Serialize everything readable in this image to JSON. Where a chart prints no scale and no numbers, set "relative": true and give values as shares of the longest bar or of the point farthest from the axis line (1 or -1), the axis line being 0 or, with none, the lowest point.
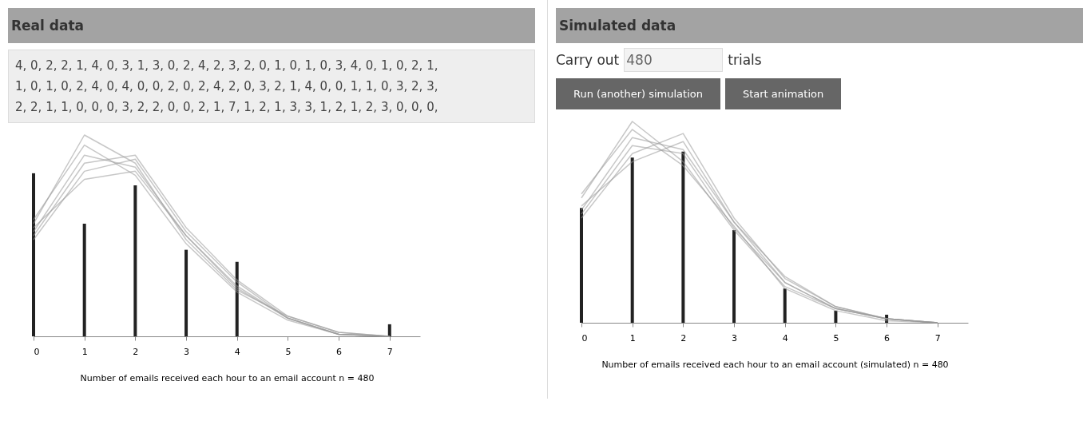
{
  "chart_data": [
    {
      "type": "bar",
      "title": "Real data",
      "relative": true,
      "xlabel": "Number of emails received each hour to an email account   n = 480",
      "xlim": [
        0,
        7.6
      ],
      "xticks": [
        0,
        1,
        2,
        3,
        4,
        5,
        6,
        7
      ],
      "x": [
        0,
        1,
        2,
        3,
        4,
        5,
        6,
        7
      ],
      "annotations": [
        "4, 0, 2, 2, 1, 4, 0, 3, 1, 3, 0, 2, 4, 2, 3, 2, 0, 1, 0, 1, 0, 3, 4, 0, 1, 0, 2, 1,",
        "1, 0, 1, 0, 2, 4, 0, 4, 0, 0, 2, 0, 2, 4, 2, 0, 3, 2, 1, 4, 0, 0, 1, 1, 0, 3, 2, 3,",
        "2, 2, 1, 1, 0, 0, 0, 3, 2, 2, 0, 0, 2, 1, 7, 1, 2, 1, 3, 3, 1, 2, 1, 2, 3, 0, 0, 0,"
      ],
      "series": [
        {
          "color": "#222222",
          "values": [
            0.81,
            0.56,
            0.75,
            0.43,
            0.37,
            0,
            0,
            0.06
          ]
        },
        {
          "type": "line",
          "color": "#999999",
          "values": [
            0.52,
            0.9,
            0.84,
            0.5,
            0.25,
            0.09,
            0.01,
            0
          ]
        },
        {
          "type": "line",
          "color": "#999999",
          "values": [
            0.56,
            1.0,
            0.86,
            0.48,
            0.23,
            0.1,
            0.02,
            0
          ]
        },
        {
          "type": "line",
          "color": "#999999",
          "values": [
            0.48,
            0.82,
            0.88,
            0.52,
            0.27,
            0.09,
            0.01,
            0
          ]
        },
        {
          "type": "line",
          "color": "#999999",
          "values": [
            0.58,
            0.95,
            0.8,
            0.46,
            0.22,
            0.08,
            0.01,
            0
          ]
        },
        {
          "type": "line",
          "color": "#999999",
          "values": [
            0.5,
            0.86,
            0.9,
            0.54,
            0.28,
            0.1,
            0.02,
            0
          ]
        },
        {
          "type": "line",
          "color": "#999999",
          "values": [
            0.54,
            0.78,
            0.82,
            0.5,
            0.24,
            0.09,
            0.01,
            0
          ]
        }
      ]
    },
    {
      "type": "bar",
      "title": "Simulated data",
      "relative": true,
      "xlabel": "Number of emails received each hour to an email account (simulated)   n = 480",
      "xlim": [
        0,
        7.6
      ],
      "xticks": [
        0,
        1,
        2,
        3,
        4,
        5,
        6,
        7
      ],
      "x": [
        0,
        1,
        2,
        3,
        4,
        5,
        6,
        7
      ],
      "annotations": [
        "Carry out",
        "480",
        "trials",
        "Run (another) simulation",
        "Start animation"
      ],
      "series": [
        {
          "color": "#222222",
          "values": [
            0.57,
            0.82,
            0.85,
            0.46,
            0.17,
            0.06,
            0.04,
            0
          ]
        },
        {
          "type": "line",
          "color": "#999999",
          "values": [
            0.56,
            0.92,
            0.86,
            0.5,
            0.2,
            0.07,
            0.02,
            0
          ]
        },
        {
          "type": "line",
          "color": "#999999",
          "values": [
            0.62,
            1.0,
            0.8,
            0.46,
            0.18,
            0.07,
            0.02,
            0
          ]
        },
        {
          "type": "line",
          "color": "#999999",
          "values": [
            0.52,
            0.84,
            0.94,
            0.52,
            0.22,
            0.08,
            0.02,
            0
          ]
        },
        {
          "type": "line",
          "color": "#999999",
          "values": [
            0.64,
            0.96,
            0.78,
            0.48,
            0.17,
            0.06,
            0.01,
            0
          ]
        },
        {
          "type": "line",
          "color": "#999999",
          "values": [
            0.58,
            0.8,
            0.9,
            0.5,
            0.23,
            0.08,
            0.02,
            0
          ]
        },
        {
          "type": "line",
          "color": "#999999",
          "values": [
            0.54,
            0.88,
            0.84,
            0.47,
            0.2,
            0.07,
            0.02,
            0
          ]
        }
      ]
    }
  ]
}
